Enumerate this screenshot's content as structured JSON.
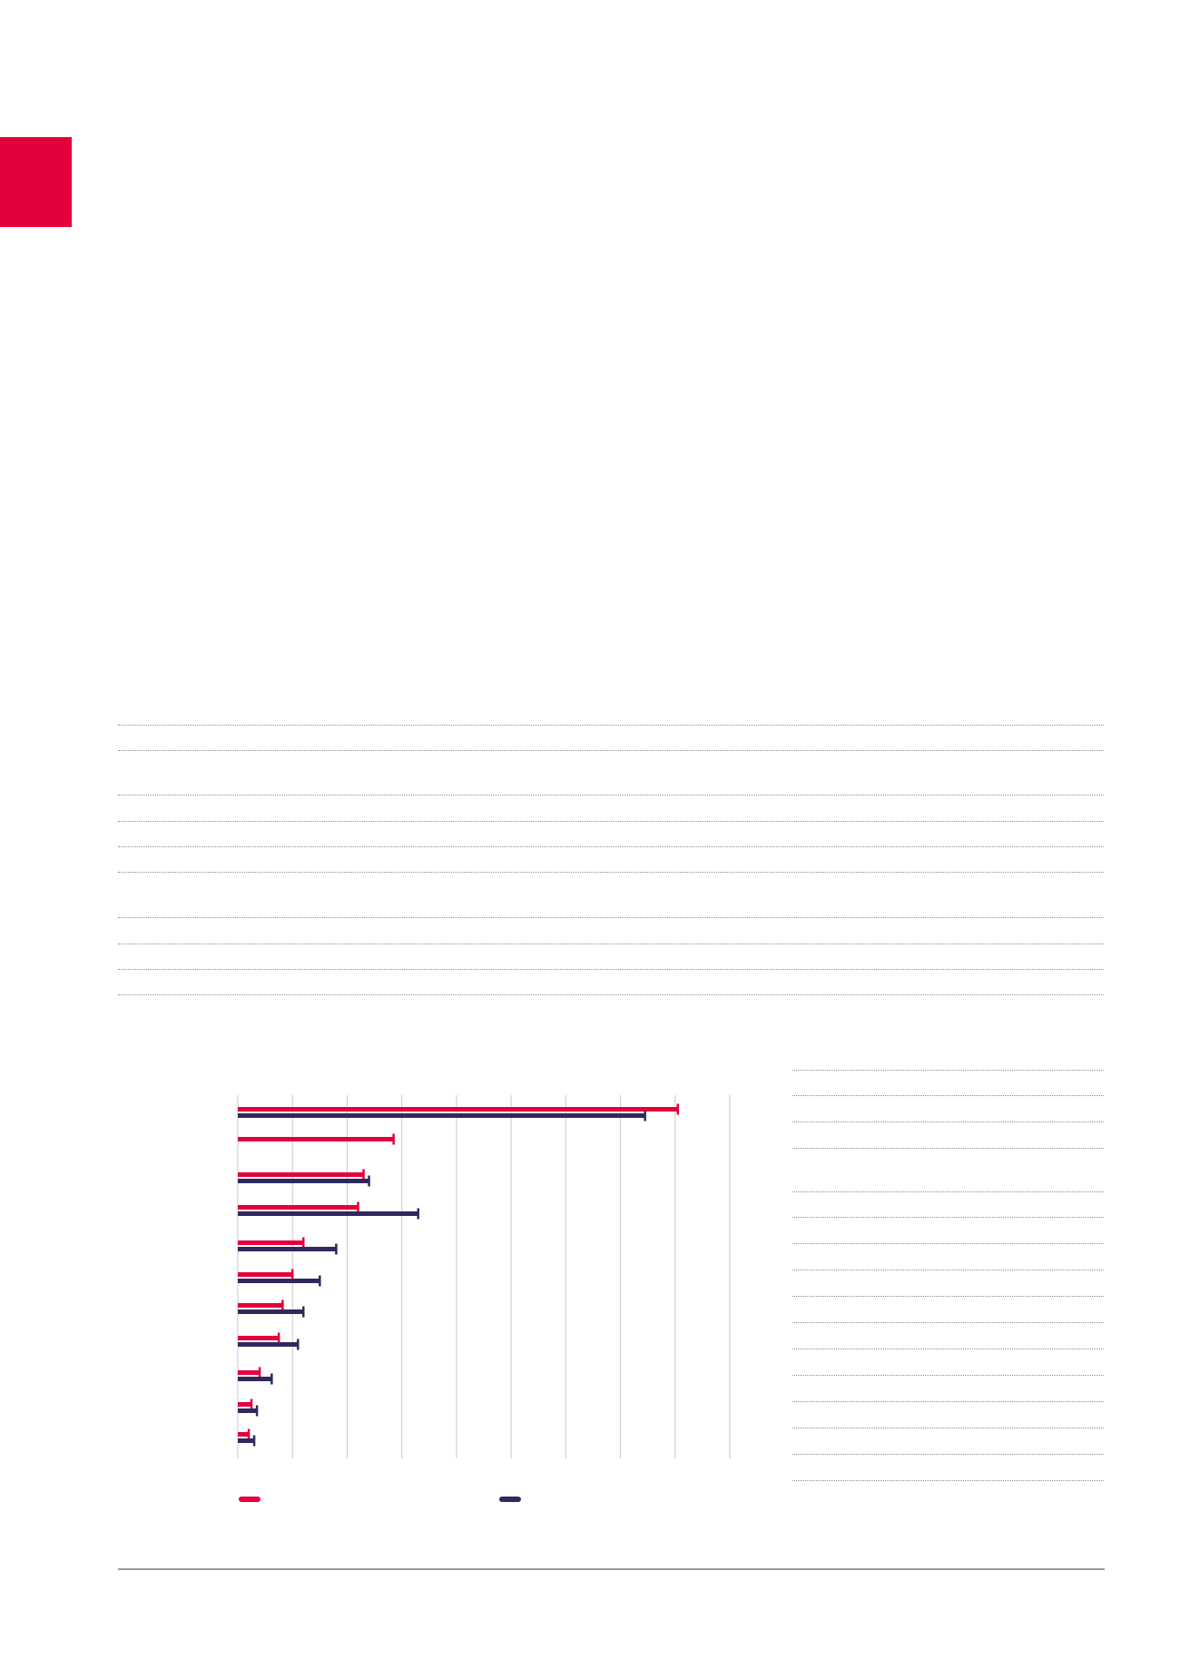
{
  "colors": {
    "accent": "#e4003b",
    "series_a": "#e4003b",
    "series_b": "#2e2a5e",
    "gridline": "#c9c9d1",
    "rule": "#9a9a9a"
  },
  "chart_data": {
    "type": "bar",
    "orientation": "horizontal",
    "grid": "vertical",
    "legend": "bottom",
    "title": "",
    "xlabel": "",
    "ylabel": "",
    "xlim": [
      0,
      9
    ],
    "categories": [
      "",
      "",
      "",
      "",
      "",
      "",
      "",
      "",
      "",
      "",
      ""
    ],
    "series": [
      {
        "color": "#e4003b",
        "values": [
          8.05,
          2.85,
          2.3,
          2.2,
          1.2,
          1.0,
          0.82,
          0.75,
          0.4,
          0.25,
          0.2
        ]
      },
      {
        "color": "#2e2a5e",
        "values": [
          7.45,
          0,
          2.4,
          3.3,
          1.8,
          1.5,
          1.2,
          1.1,
          0.62,
          0.35,
          0.3
        ]
      }
    ]
  }
}
